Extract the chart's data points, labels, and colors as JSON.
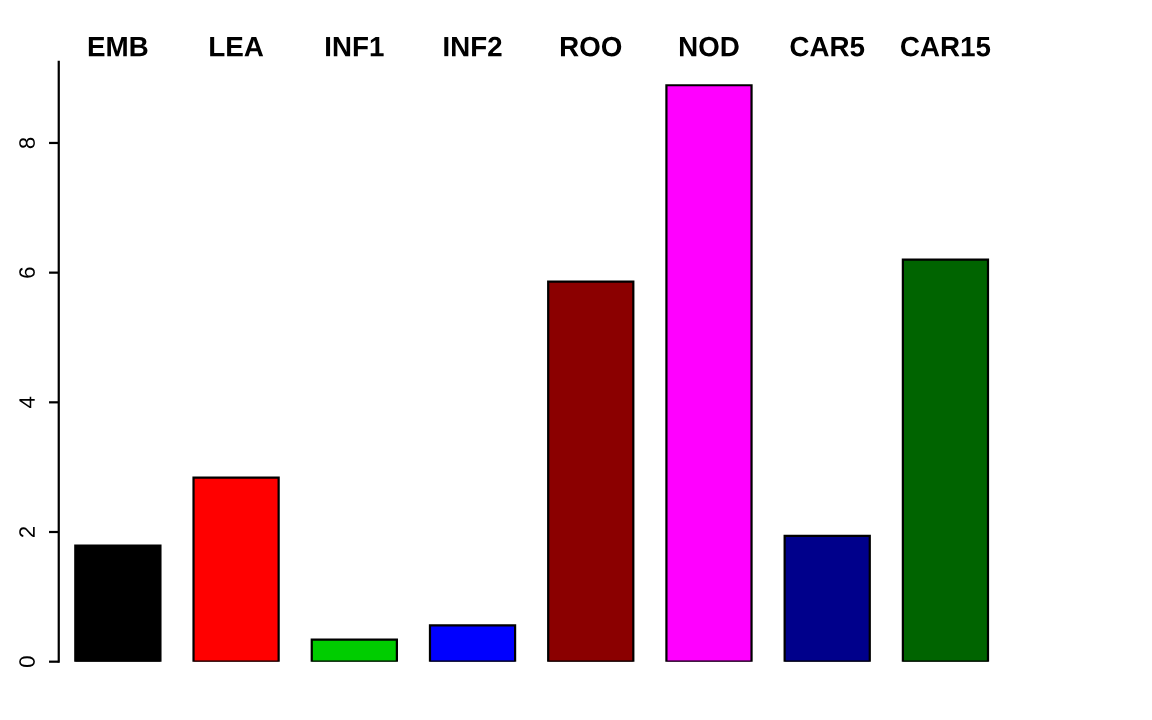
{
  "chart_data": {
    "type": "bar",
    "categories": [
      "EMB",
      "LEA",
      "INF1",
      "INF2",
      "ROO",
      "NOD",
      "CAR5",
      "CAR15"
    ],
    "values": [
      1.79,
      2.84,
      0.34,
      0.56,
      5.86,
      8.89,
      1.94,
      6.2
    ],
    "colors": [
      "#000000",
      "#ff0000",
      "#00cd00",
      "#0000ff",
      "#8b0000",
      "#ff00ff",
      "#00008b",
      "#006400"
    ],
    "ylim": [
      0,
      9.25
    ],
    "yticks": [
      0,
      2,
      4,
      6,
      8
    ],
    "grid": false,
    "legend": false
  }
}
